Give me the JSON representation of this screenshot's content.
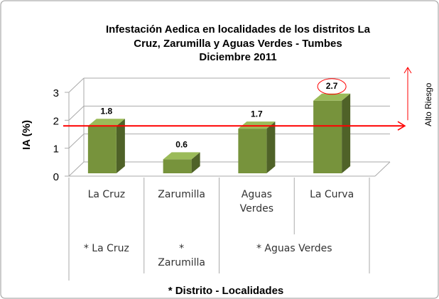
{
  "chart_data": {
    "type": "bar3d",
    "title": [
      "Infestación Aedica en localidades  de los distritos La",
      "Cruz, Zarumilla y Aguas Verdes - Tumbes",
      "Diciembre 2011"
    ],
    "y_label": "IA (%)",
    "x_label": "* Distrito - Localidades",
    "categories": [
      "La Cruz",
      "Zarumilla",
      "Aguas Verdes",
      "La Curva"
    ],
    "values": [
      1.8,
      0.6,
      1.7,
      2.7
    ],
    "groups": [
      {
        "label": "* La Cruz",
        "span": 1
      },
      {
        "label": "* Zarumilla",
        "span": 1
      },
      {
        "label": "* Aguas Verdes",
        "span": 2
      }
    ],
    "color": "#77933c",
    "ylim": [
      0,
      3
    ],
    "yticks": [
      0,
      1,
      2,
      3
    ],
    "grid": true,
    "threshold": {
      "value": 1.8,
      "label": "Alto Riesgo",
      "color": "#ff0000"
    }
  }
}
